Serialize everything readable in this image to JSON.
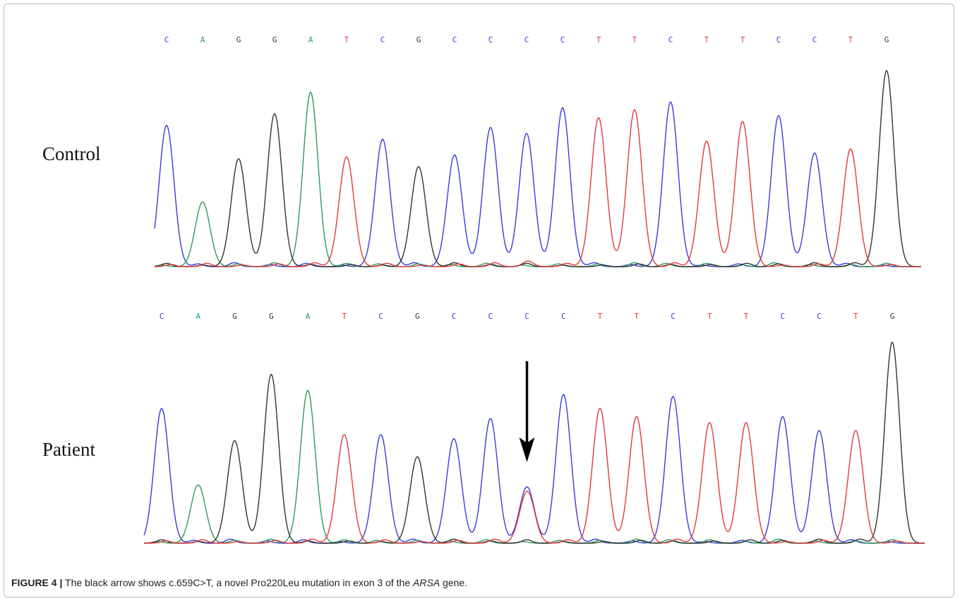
{
  "colors": {
    "C": "#3a3ae0",
    "A": "#2e9a5a",
    "G": "#333333",
    "T": "#e03a3a",
    "arrow": "#000000"
  },
  "caption": {
    "label": "FIGURE 4 |",
    "text_before": " The black arrow shows c.659C>T, a novel Pro220Leu mutation in exon 3 of the ",
    "gene": "ARSA",
    "text_after": " gene."
  },
  "chart_data": [
    {
      "type": "line",
      "title": "Control",
      "bases": [
        "C",
        "A",
        "G",
        "G",
        "A",
        "T",
        "C",
        "G",
        "C",
        "C",
        "C",
        "C",
        "T",
        "T",
        "C",
        "T",
        "T",
        "C",
        "C",
        "T",
        "G"
      ],
      "peak_heights": [
        0.72,
        0.33,
        0.55,
        0.78,
        0.89,
        0.56,
        0.65,
        0.51,
        0.57,
        0.71,
        0.68,
        0.81,
        0.76,
        0.8,
        0.84,
        0.64,
        0.74,
        0.77,
        0.58,
        0.6,
        1.0
      ],
      "secondary_peaks": [
        {
          "index": 10,
          "base": "T",
          "height": 0.02
        }
      ]
    },
    {
      "type": "line",
      "title": "Patient",
      "bases": [
        "C",
        "A",
        "G",
        "G",
        "A",
        "T",
        "C",
        "G",
        "C",
        "C",
        "C",
        "C",
        "T",
        "T",
        "C",
        "T",
        "T",
        "C",
        "C",
        "T",
        "G"
      ],
      "peak_heights": [
        0.67,
        0.29,
        0.51,
        0.84,
        0.76,
        0.54,
        0.54,
        0.43,
        0.52,
        0.62,
        0.28,
        0.74,
        0.67,
        0.63,
        0.73,
        0.6,
        0.6,
        0.63,
        0.56,
        0.56,
        1.0
      ],
      "secondary_peaks": [
        {
          "index": 10,
          "base": "T",
          "height": 0.25
        }
      ],
      "annotation": {
        "type": "arrow",
        "index": 10
      }
    }
  ]
}
